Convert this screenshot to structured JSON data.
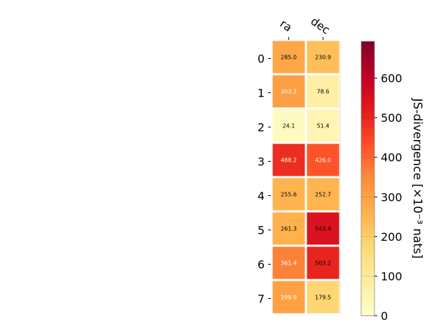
{
  "chart_data": {
    "type": "heatmap",
    "title": "",
    "columns": [
      "ra",
      "dec"
    ],
    "rows": [
      "0",
      "1",
      "2",
      "3",
      "4",
      "5",
      "6",
      "7"
    ],
    "values": [
      [
        285.0,
        230.9
      ],
      [
        303.2,
        78.6
      ],
      [
        24.1,
        51.4
      ],
      [
        488.2,
        426.0
      ],
      [
        255.6,
        252.7
      ],
      [
        261.3,
        543.4
      ],
      [
        361.4,
        503.2
      ],
      [
        299.9,
        179.5
      ]
    ],
    "cell_labels": [
      [
        "285.0",
        "230.9"
      ],
      [
        "303.2",
        "78.6"
      ],
      [
        "24.1",
        "51.4"
      ],
      [
        "488.2",
        "426.0"
      ],
      [
        "255.6",
        "252.7"
      ],
      [
        "261.3",
        "543.4"
      ],
      [
        "361.4",
        "503.2"
      ],
      [
        "299.9",
        "179.5"
      ]
    ],
    "colormap": "YlOrRd",
    "colorbar": {
      "label": "JS-divergence [×10⁻³ nats]",
      "range": [
        0,
        693
      ],
      "ticks": [
        0,
        100,
        200,
        300,
        400,
        500,
        600
      ],
      "tick_labels": [
        "0",
        "100",
        "200",
        "300",
        "400",
        "500",
        "600"
      ]
    }
  }
}
